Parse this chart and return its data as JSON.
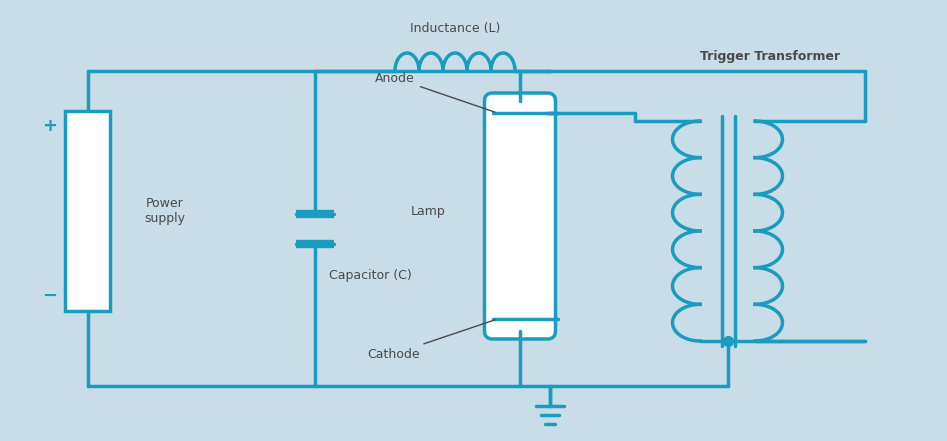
{
  "bg_color": "#c8dde8",
  "line_color": "#1a9bc0",
  "line_width": 2.5,
  "text_color": "#4a4a4a",
  "label_color": "#1a9bc0",
  "title": "",
  "fig_width": 9.47,
  "fig_height": 4.41,
  "labels": {
    "inductance": "Inductance (L)",
    "anode": "Anode",
    "lamp": "Lamp",
    "cathode": "Cathode",
    "capacitor": "Capacitor (C)",
    "power_supply": "Power\nsupply",
    "trigger": "Trigger Transformer"
  }
}
